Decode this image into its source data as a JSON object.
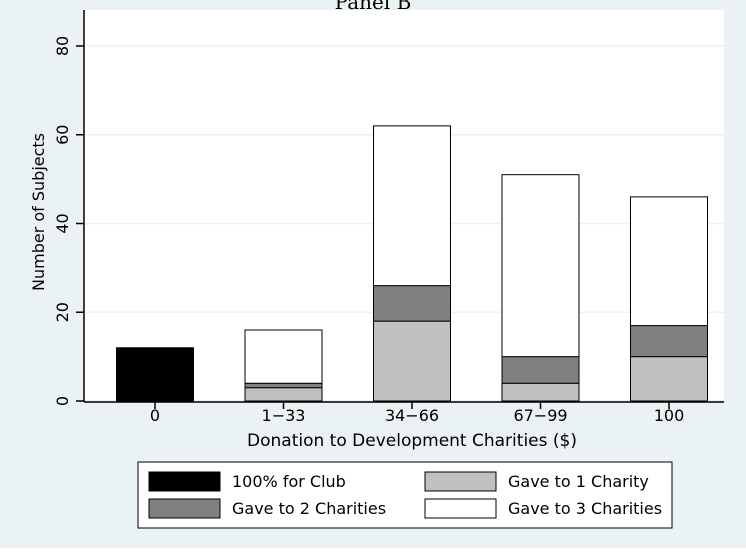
{
  "chart_data": {
    "type": "bar",
    "stacked": true,
    "title": "Panel B",
    "xlabel": "Donation to Development Charities ($)",
    "ylabel": "Number of Subjects",
    "categories": [
      "0",
      "1−33",
      "34−66",
      "67−99",
      "100"
    ],
    "ylim": [
      0,
      80
    ],
    "yticks": [
      0,
      20,
      40,
      60,
      80
    ],
    "grid": true,
    "legend_position": "bottom",
    "series": [
      {
        "name": "100% for Club",
        "color": "#000000",
        "values": [
          12,
          0,
          0,
          0,
          0
        ]
      },
      {
        "name": "Gave to 1 Charity",
        "color": "#c0c0c0",
        "values": [
          0,
          3,
          18,
          4,
          10
        ]
      },
      {
        "name": "Gave to 2 Charities",
        "color": "#808080",
        "values": [
          0,
          1,
          8,
          6,
          7
        ]
      },
      {
        "name": "Gave to 3 Charities",
        "color": "#ffffff",
        "values": [
          0,
          12,
          36,
          41,
          29
        ]
      }
    ],
    "legend_order": [
      0,
      1,
      2,
      3
    ]
  },
  "colors": {
    "background": "#eaf2f3",
    "plot_background": "#ffffff",
    "gridline": "#eaf2f3",
    "axis": "#000000"
  }
}
